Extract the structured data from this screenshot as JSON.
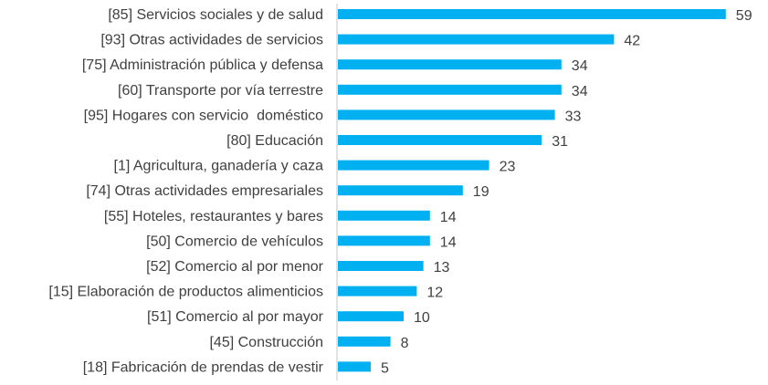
{
  "chart_data": {
    "type": "bar",
    "orientation": "horizontal",
    "title": "",
    "xlabel": "",
    "ylabel": "",
    "xlim": [
      0,
      60
    ],
    "grid": false,
    "bar_color": "#00B0F0",
    "text_color": "#404040",
    "axis_color": "#D9D9D9",
    "categories": [
      "[85] Servicios sociales y de salud",
      "[93] Otras actividades de servicios",
      "[75] Administración pública y defensa",
      "[60] Transporte por vía terrestre",
      "[95] Hogares con servicio  doméstico",
      "[80] Educación",
      "[1] Agricultura, ganadería y caza",
      "[74] Otras actividades empresariales",
      "[55] Hoteles, restaurantes y bares",
      "[50] Comercio de vehículos",
      "[52] Comercio al por menor",
      "[15] Elaboración de productos alimenticios",
      "[51] Comercio al por mayor",
      "[45] Construcción",
      "[18] Fabricación de prendas de vestir"
    ],
    "values": [
      59,
      42,
      34,
      34,
      33,
      31,
      23,
      19,
      14,
      14,
      13,
      12,
      10,
      8,
      5
    ]
  }
}
